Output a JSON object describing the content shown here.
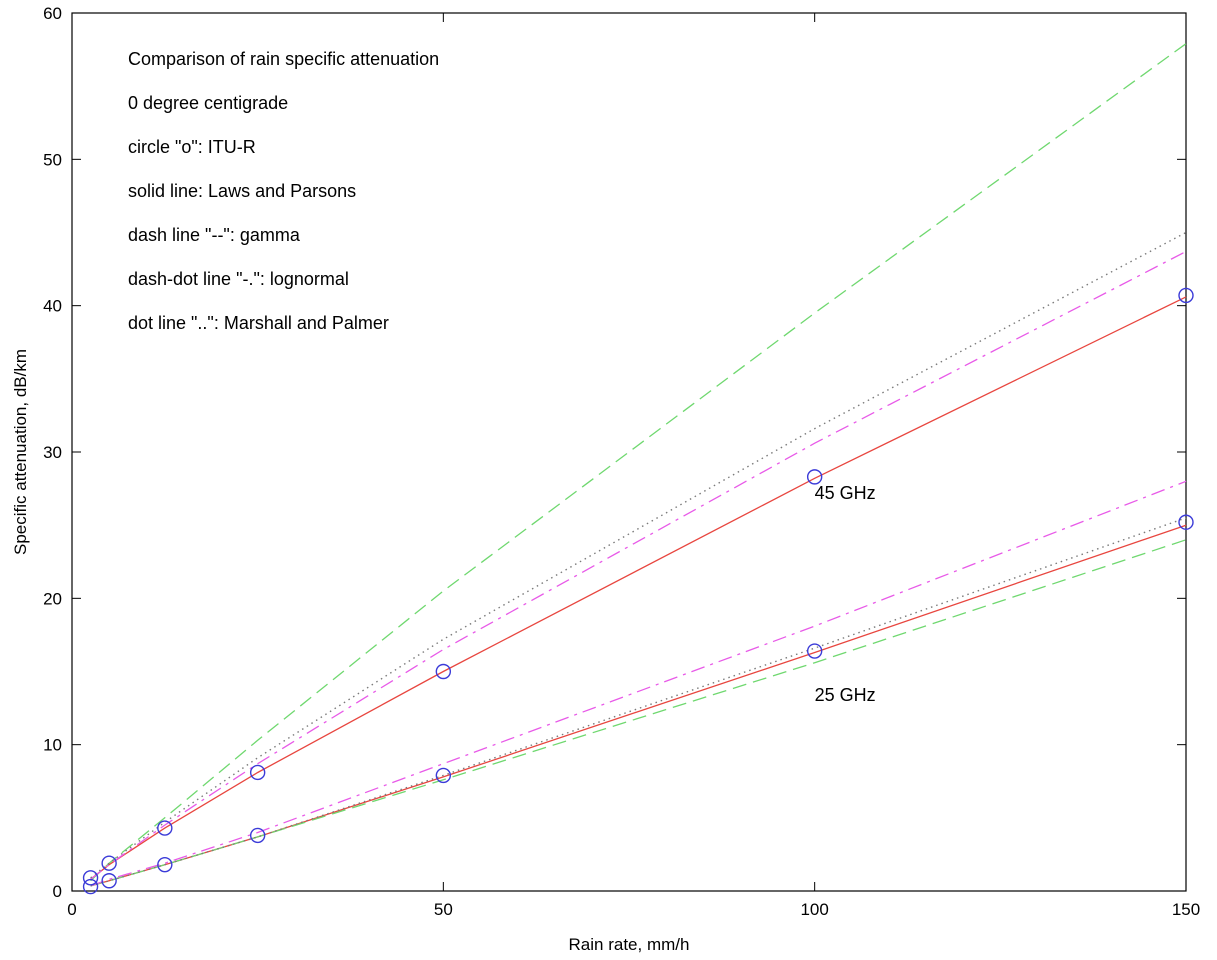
{
  "chart_data": {
    "type": "line",
    "title": "",
    "xlabel": "Rain rate, mm/h",
    "ylabel": "Specific attenuation, dB/km",
    "xlim": [
      0,
      150
    ],
    "ylim": [
      0,
      60
    ],
    "xticks": [
      "0",
      "50",
      "100",
      "150"
    ],
    "yticks": [
      "0",
      "10",
      "20",
      "30",
      "40",
      "50",
      "60"
    ],
    "grid": false,
    "annotations": [
      "Comparison of rain specific attenuation",
      "0 degree centigrade",
      "circle \"o\": ITU-R",
      "solid line: Laws and Parsons",
      "dash line \"--\": gamma",
      "dash-dot line \"-.\": lognormal",
      "dot line \"..\": Marshall and Palmer"
    ],
    "curve_labels": [
      {
        "text": "45 GHz",
        "x": 100,
        "y": 26.8
      },
      {
        "text": "25 GHz",
        "x": 100,
        "y": 13.0
      }
    ],
    "x": [
      2.5,
      5,
      12.5,
      25,
      50,
      100,
      150
    ],
    "series": [
      {
        "group": "45 GHz",
        "style": "solid",
        "color": "#e8463f",
        "values": [
          0.8,
          1.8,
          4.3,
          8.1,
          15.0,
          28.2,
          40.6
        ]
      },
      {
        "group": "45 GHz",
        "style": "dashed",
        "color": "#6fd86f",
        "values": [
          0.7,
          1.9,
          5.0,
          10.3,
          20.5,
          39.5,
          57.9
        ]
      },
      {
        "group": "45 GHz",
        "style": "dashdot",
        "color": "#e85ae8",
        "values": [
          0.8,
          1.8,
          4.5,
          8.7,
          16.5,
          30.6,
          43.7
        ]
      },
      {
        "group": "45 GHz",
        "style": "dotted",
        "color": "#7a7a7a",
        "values": [
          0.9,
          1.9,
          4.7,
          9.1,
          17.2,
          31.6,
          45.0
        ]
      },
      {
        "group": "45 GHz",
        "style": "markers",
        "color": "#3b3bd8",
        "values": [
          0.9,
          1.9,
          4.3,
          8.1,
          15.0,
          28.3,
          40.7
        ]
      },
      {
        "group": "25 GHz",
        "style": "solid",
        "color": "#e8463f",
        "values": [
          0.35,
          0.7,
          1.8,
          3.7,
          7.8,
          16.3,
          25.0
        ]
      },
      {
        "group": "25 GHz",
        "style": "dashed",
        "color": "#6fd86f",
        "values": [
          0.35,
          0.7,
          1.8,
          3.7,
          7.6,
          15.6,
          24.0
        ]
      },
      {
        "group": "25 GHz",
        "style": "dashdot",
        "color": "#e85ae8",
        "values": [
          0.35,
          0.8,
          1.9,
          4.0,
          8.7,
          18.1,
          28.0
        ]
      },
      {
        "group": "25 GHz",
        "style": "dotted",
        "color": "#7a7a7a",
        "values": [
          0.35,
          0.7,
          1.8,
          3.7,
          7.9,
          16.6,
          25.5
        ]
      },
      {
        "group": "25 GHz",
        "style": "markers",
        "color": "#3b3bd8",
        "values": [
          0.3,
          0.7,
          1.8,
          3.8,
          7.9,
          16.4,
          25.2
        ]
      }
    ]
  }
}
